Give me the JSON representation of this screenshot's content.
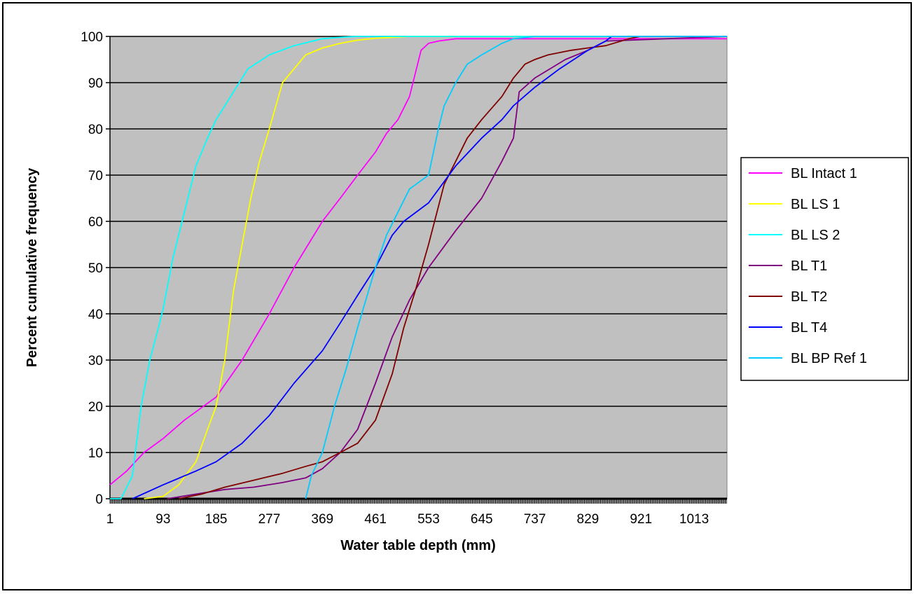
{
  "chart_data": {
    "type": "line",
    "title": "",
    "xlabel": "Water table depth (mm)",
    "ylabel": "Percent cumulative frequency",
    "xlim": [
      1,
      1070
    ],
    "ylim": [
      0,
      100
    ],
    "x_ticks": [
      1,
      93,
      185,
      277,
      369,
      461,
      553,
      645,
      737,
      829,
      921,
      1013
    ],
    "y_ticks": [
      0,
      10,
      20,
      30,
      40,
      50,
      60,
      70,
      80,
      90,
      100
    ],
    "grid": "horizontal",
    "plot_background": "#c0c0c0",
    "legend_position": "right",
    "series": [
      {
        "name": "BL Intact 1",
        "color": "#ff00ff",
        "x": [
          1,
          30,
          60,
          93,
          130,
          185,
          230,
          277,
          320,
          369,
          400,
          430,
          461,
          480,
          500,
          520,
          540,
          553,
          570,
          600,
          1070
        ],
        "y": [
          3,
          6,
          10,
          13,
          17,
          22,
          30,
          40,
          50,
          60,
          65,
          70,
          75,
          79,
          82,
          87,
          97,
          98.5,
          99,
          99.5,
          99.5
        ]
      },
      {
        "name": "BL LS 1",
        "color": "#ffff00",
        "x": [
          60,
          93,
          120,
          150,
          170,
          185,
          200,
          215,
          230,
          245,
          260,
          277,
          300,
          320,
          340,
          369,
          400,
          430,
          461,
          490,
          520,
          1070
        ],
        "y": [
          0,
          0.5,
          3,
          8,
          15,
          20,
          30,
          45,
          55,
          65,
          73,
          80,
          90,
          93,
          96,
          97.5,
          98.5,
          99.2,
          99.6,
          99.8,
          100,
          100
        ]
      },
      {
        "name": "BL LS 2",
        "color": "#00ffff",
        "x": [
          1,
          20,
          40,
          55,
          70,
          85,
          93,
          110,
          130,
          150,
          170,
          185,
          210,
          240,
          277,
          320,
          369,
          400,
          430,
          461,
          1070
        ],
        "y": [
          0,
          0,
          5,
          20,
          30,
          37,
          41,
          52,
          62,
          72,
          78,
          82,
          87,
          93,
          96,
          98,
          99.5,
          99.8,
          100,
          100,
          100
        ]
      },
      {
        "name": "BL T1",
        "color": "#800080",
        "x": [
          100,
          150,
          200,
          250,
          300,
          340,
          369,
          400,
          430,
          461,
          490,
          520,
          553,
          600,
          645,
          680,
          700,
          710,
          737,
          790,
          829,
          860,
          1070
        ],
        "y": [
          0,
          1,
          2,
          2.5,
          3.5,
          4.5,
          6.5,
          10,
          15,
          25,
          35,
          43,
          50,
          58,
          65,
          73,
          78,
          88,
          91,
          95,
          97,
          99,
          100
        ]
      },
      {
        "name": "BL T2",
        "color": "#800000",
        "x": [
          120,
          160,
          200,
          250,
          300,
          340,
          369,
          400,
          430,
          461,
          490,
          510,
          530,
          553,
          580,
          600,
          620,
          645,
          680,
          700,
          720,
          737,
          760,
          800,
          829,
          860,
          900,
          920,
          1070
        ],
        "y": [
          0,
          1,
          2.5,
          4,
          5.5,
          7,
          8,
          10,
          12,
          17,
          27,
          37,
          45,
          55,
          68,
          73,
          78,
          82,
          87,
          91,
          94,
          95,
          96,
          97,
          97.5,
          98,
          99.5,
          100,
          100
        ]
      },
      {
        "name": "BL T4",
        "color": "#0000ff",
        "x": [
          40,
          93,
          150,
          185,
          230,
          277,
          320,
          369,
          400,
          430,
          461,
          490,
          510,
          553,
          600,
          645,
          680,
          700,
          737,
          780,
          829,
          860,
          870,
          1070
        ],
        "y": [
          0,
          3,
          6,
          8,
          12,
          18,
          25,
          32,
          38,
          44,
          50,
          57,
          60,
          64,
          72,
          78,
          82,
          85,
          89,
          93,
          97,
          99,
          100,
          100
        ]
      },
      {
        "name": "BL BP Ref 1",
        "color": "#00ccff",
        "x": [
          340,
          350,
          369,
          390,
          410,
          430,
          461,
          480,
          500,
          520,
          553,
          570,
          580,
          600,
          620,
          645,
          680,
          700,
          737,
          1070
        ],
        "y": [
          0,
          5,
          10,
          20,
          28,
          37,
          50,
          57,
          62,
          67,
          70,
          80,
          85,
          90,
          94,
          96,
          98.5,
          99.5,
          100,
          100
        ]
      }
    ]
  }
}
